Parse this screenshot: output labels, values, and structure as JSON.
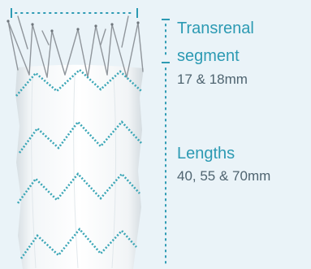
{
  "labels": {
    "transrenal_title_line1": "Transrenal",
    "transrenal_title_line2": "segment",
    "transrenal_value": "17 & 18mm",
    "lengths_title": "Lengths",
    "lengths_value": "40, 55 & 70mm"
  },
  "colors": {
    "background": "#eaf3f8",
    "accent": "#2c9ab3",
    "body_text": "#4f6470",
    "fabric": "#ffffff",
    "stitch": "#3aa6b6",
    "wire": "#8f959b"
  }
}
